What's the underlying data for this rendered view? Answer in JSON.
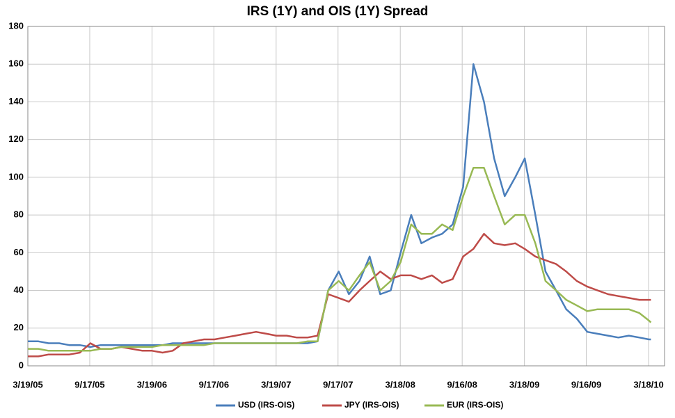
{
  "chart_data": {
    "type": "line",
    "title": "IRS (1Y)  and OIS (1Y) Spread",
    "x": [
      "3/19/05",
      "4/19/05",
      "5/19/05",
      "6/19/05",
      "7/19/05",
      "8/19/05",
      "9/19/05",
      "10/19/05",
      "11/19/05",
      "12/19/05",
      "1/19/06",
      "2/19/06",
      "3/19/06",
      "4/19/06",
      "5/19/06",
      "6/19/06",
      "7/19/06",
      "8/19/06",
      "9/19/06",
      "10/19/06",
      "11/19/06",
      "12/19/06",
      "1/19/07",
      "2/19/07",
      "3/19/07",
      "4/19/07",
      "5/19/07",
      "6/19/07",
      "7/19/07",
      "8/19/07",
      "9/19/07",
      "10/19/07",
      "11/19/07",
      "12/19/07",
      "1/19/08",
      "2/19/08",
      "3/19/08",
      "4/19/08",
      "5/19/08",
      "6/19/08",
      "7/19/08",
      "8/19/08",
      "9/19/08",
      "10/19/08",
      "11/19/08",
      "12/19/08",
      "1/19/09",
      "2/19/09",
      "3/19/09",
      "4/19/09",
      "5/19/09",
      "6/19/09",
      "7/19/09",
      "8/19/09",
      "9/19/09",
      "10/19/09",
      "11/19/09",
      "12/19/09",
      "1/19/10",
      "2/19/10",
      "3/19/10",
      "3/25/10"
    ],
    "series": [
      {
        "name": "USD (IRS-OIS)",
        "color": "#4a7ebb",
        "values": [
          13,
          13,
          12,
          12,
          11,
          11,
          10,
          11,
          11,
          11,
          11,
          11,
          11,
          11,
          12,
          12,
          12,
          12,
          12,
          12,
          12,
          12,
          12,
          12,
          12,
          12,
          12,
          12,
          13,
          40,
          50,
          38,
          45,
          58,
          38,
          40,
          60,
          80,
          65,
          68,
          70,
          75,
          95,
          160,
          140,
          110,
          90,
          100,
          110,
          80,
          50,
          40,
          30,
          25,
          18,
          17,
          16,
          15,
          16,
          15,
          14,
          14
        ]
      },
      {
        "name": "JPY (IRS-OIS)",
        "color": "#be4b48",
        "values": [
          5,
          5,
          6,
          6,
          6,
          7,
          12,
          9,
          9,
          10,
          9,
          8,
          8,
          7,
          8,
          12,
          13,
          14,
          14,
          15,
          16,
          17,
          18,
          17,
          16,
          16,
          15,
          15,
          16,
          38,
          36,
          34,
          40,
          45,
          50,
          46,
          48,
          48,
          46,
          48,
          44,
          46,
          58,
          62,
          70,
          65,
          64,
          65,
          62,
          58,
          56,
          54,
          50,
          45,
          42,
          40,
          38,
          37,
          36,
          35,
          35,
          35
        ]
      },
      {
        "name": "EUR (IRS-OIS)",
        "color": "#98b954",
        "values": [
          9,
          9,
          8,
          8,
          8,
          8,
          8,
          9,
          9,
          10,
          10,
          10,
          10,
          11,
          11,
          11,
          11,
          11,
          12,
          12,
          12,
          12,
          12,
          12,
          12,
          12,
          12,
          13,
          13,
          40,
          45,
          40,
          48,
          55,
          40,
          45,
          55,
          75,
          70,
          70,
          75,
          72,
          90,
          105,
          105,
          90,
          75,
          80,
          80,
          65,
          45,
          40,
          35,
          32,
          29,
          30,
          30,
          30,
          30,
          28,
          24,
          23
        ]
      }
    ],
    "xlim": [
      "3/19/05",
      "5/4/10"
    ],
    "xticks": [
      "3/19/05",
      "9/17/05",
      "3/19/06",
      "9/17/06",
      "3/19/07",
      "9/17/07",
      "3/18/08",
      "9/16/08",
      "3/18/09",
      "9/16/09",
      "3/18/10"
    ],
    "ylim": [
      0,
      180
    ],
    "yticks": [
      0,
      20,
      40,
      60,
      80,
      100,
      120,
      140,
      160,
      180
    ],
    "grid": true,
    "legend": "bottom"
  }
}
